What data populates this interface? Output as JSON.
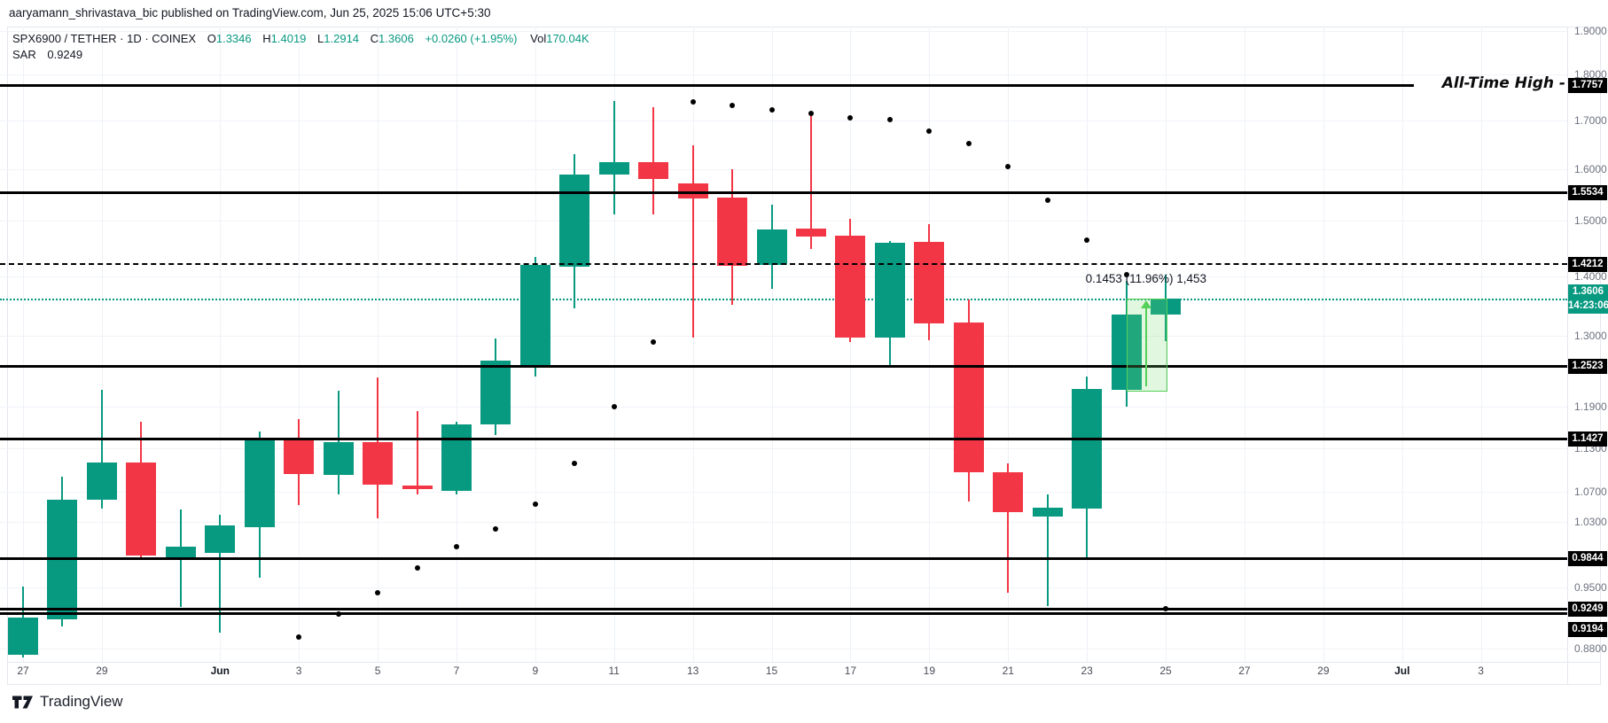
{
  "attribution": "aaryamann_shrivastava_bic published on TradingView.com, Jun 25, 2025 15:06 UTC+5:30",
  "legend": {
    "title": "SPX6900 / TETHER · 1D · COINEX",
    "o_label": "O",
    "o": "1.3346",
    "h_label": "H",
    "h": "1.4019",
    "l_label": "L",
    "l": "1.2914",
    "c_label": "C",
    "c": "1.3606",
    "change": "+0.0260 (+1.95%)",
    "vol_label": "Vol",
    "vol": "170.04K",
    "sar_label": "SAR",
    "sar_value": "0.9249"
  },
  "footer": {
    "logo_text": "TradingView"
  },
  "colors": {
    "up": "#089981",
    "down": "#f23645",
    "sar": "#000000",
    "level": "#000000",
    "current_price": "#089981",
    "range_fill": "rgba(118,217,110,0.22)",
    "range_border": "#55d058"
  },
  "chart_data": {
    "type": "candlestick",
    "title": "SPX6900 / TETHER · 1D · COINEX",
    "y_axis": {
      "top_price": 1.9,
      "bottom_price": 0.88,
      "scale": "log"
    },
    "y_ticks": [
      {
        "label": "1.9000",
        "value": 1.9
      },
      {
        "label": "1.8000",
        "value": 1.8
      },
      {
        "label": "1.7000",
        "value": 1.7
      },
      {
        "label": "1.6000",
        "value": 1.6
      },
      {
        "label": "1.5000",
        "value": 1.5
      },
      {
        "label": "1.4000",
        "value": 1.4
      },
      {
        "label": "1.3000",
        "value": 1.3
      },
      {
        "label": "1.1900",
        "value": 1.19
      },
      {
        "label": "1.1300",
        "value": 1.13
      },
      {
        "label": "1.0700",
        "value": 1.07
      },
      {
        "label": "1.0300",
        "value": 1.03
      },
      {
        "label": "0.9500",
        "value": 0.95
      },
      {
        "label": "0.8800",
        "value": 0.88
      }
    ],
    "x_ticks": [
      {
        "label": "27",
        "day": 0,
        "bold": false
      },
      {
        "label": "29",
        "day": 2,
        "bold": false
      },
      {
        "label": "Jun",
        "day": 5,
        "bold": true
      },
      {
        "label": "3",
        "day": 7,
        "bold": false
      },
      {
        "label": "5",
        "day": 9,
        "bold": false
      },
      {
        "label": "7",
        "day": 11,
        "bold": false
      },
      {
        "label": "9",
        "day": 13,
        "bold": false
      },
      {
        "label": "11",
        "day": 15,
        "bold": false
      },
      {
        "label": "13",
        "day": 17,
        "bold": false
      },
      {
        "label": "15",
        "day": 19,
        "bold": false
      },
      {
        "label": "17",
        "day": 21,
        "bold": false
      },
      {
        "label": "19",
        "day": 23,
        "bold": false
      },
      {
        "label": "21",
        "day": 25,
        "bold": false
      },
      {
        "label": "23",
        "day": 27,
        "bold": false
      },
      {
        "label": "25",
        "day": 29,
        "bold": false
      },
      {
        "label": "27",
        "day": 31,
        "bold": false
      },
      {
        "label": "29",
        "day": 33,
        "bold": false
      },
      {
        "label": "Jul",
        "day": 35,
        "bold": true
      },
      {
        "label": "3",
        "day": 37,
        "bold": false
      }
    ],
    "candles": [
      {
        "date": "May 27",
        "o": 0.873,
        "h": 0.951,
        "l": 0.87,
        "c": 0.915
      },
      {
        "date": "May 28",
        "o": 0.913,
        "h": 1.09,
        "l": 0.905,
        "c": 1.059
      },
      {
        "date": "May 29",
        "o": 1.059,
        "h": 1.215,
        "l": 1.048,
        "c": 1.11
      },
      {
        "date": "May 30",
        "o": 1.11,
        "h": 1.168,
        "l": 0.985,
        "c": 0.988
      },
      {
        "date": "May 31",
        "o": 0.984,
        "h": 1.047,
        "l": 0.927,
        "c": 0.999
      },
      {
        "date": "Jun 1",
        "o": 0.991,
        "h": 1.04,
        "l": 0.898,
        "c": 1.026
      },
      {
        "date": "Jun 2",
        "o": 1.024,
        "h": 1.154,
        "l": 0.961,
        "c": 1.144
      },
      {
        "date": "Jun 3",
        "o": 1.141,
        "h": 1.172,
        "l": 1.052,
        "c": 1.094
      },
      {
        "date": "Jun 4",
        "o": 1.093,
        "h": 1.213,
        "l": 1.067,
        "c": 1.138
      },
      {
        "date": "Jun 5",
        "o": 1.138,
        "h": 1.234,
        "l": 1.035,
        "c": 1.079
      },
      {
        "date": "Jun 6",
        "o": 1.078,
        "h": 1.183,
        "l": 1.066,
        "c": 1.074
      },
      {
        "date": "Jun 7",
        "o": 1.071,
        "h": 1.168,
        "l": 1.067,
        "c": 1.164
      },
      {
        "date": "Jun 8",
        "o": 1.163,
        "h": 1.295,
        "l": 1.148,
        "c": 1.26
      },
      {
        "date": "Jun 9",
        "o": 1.252,
        "h": 1.434,
        "l": 1.235,
        "c": 1.42
      },
      {
        "date": "Jun 10",
        "o": 1.417,
        "h": 1.629,
        "l": 1.344,
        "c": 1.588
      },
      {
        "date": "Jun 11",
        "o": 1.588,
        "h": 1.742,
        "l": 1.512,
        "c": 1.613
      },
      {
        "date": "Jun 12",
        "o": 1.613,
        "h": 1.727,
        "l": 1.512,
        "c": 1.58
      },
      {
        "date": "Jun 13",
        "o": 1.571,
        "h": 1.647,
        "l": 1.296,
        "c": 1.542
      },
      {
        "date": "Jun 14",
        "o": 1.543,
        "h": 1.599,
        "l": 1.351,
        "c": 1.418
      },
      {
        "date": "Jun 15",
        "o": 1.42,
        "h": 1.53,
        "l": 1.378,
        "c": 1.484
      },
      {
        "date": "Jun 16",
        "o": 1.485,
        "h": 1.708,
        "l": 1.448,
        "c": 1.471
      },
      {
        "date": "Jun 17",
        "o": 1.472,
        "h": 1.504,
        "l": 1.29,
        "c": 1.296
      },
      {
        "date": "Jun 18",
        "o": 1.296,
        "h": 1.463,
        "l": 1.251,
        "c": 1.46
      },
      {
        "date": "Jun 19",
        "o": 1.461,
        "h": 1.494,
        "l": 1.293,
        "c": 1.319
      },
      {
        "date": "Jun 20",
        "o": 1.321,
        "h": 1.36,
        "l": 1.057,
        "c": 1.096
      },
      {
        "date": "Jun 21",
        "o": 1.096,
        "h": 1.109,
        "l": 0.943,
        "c": 1.043
      },
      {
        "date": "Jun 22",
        "o": 1.037,
        "h": 1.066,
        "l": 0.928,
        "c": 1.049
      },
      {
        "date": "Jun 23",
        "o": 1.048,
        "h": 1.235,
        "l": 0.984,
        "c": 1.216
      },
      {
        "date": "Jun 24",
        "o": 1.215,
        "h": 1.392,
        "l": 1.19,
        "c": 1.335
      },
      {
        "date": "Jun 25",
        "o": 1.3346,
        "h": 1.4019,
        "l": 1.2914,
        "c": 1.3606
      }
    ],
    "sar": [
      {
        "day": 7,
        "value": 0.893
      },
      {
        "day": 8,
        "value": 0.919
      },
      {
        "day": 9,
        "value": 0.943
      },
      {
        "day": 10,
        "value": 0.973
      },
      {
        "day": 11,
        "value": 0.999
      },
      {
        "day": 12,
        "value": 1.022
      },
      {
        "day": 13,
        "value": 1.054
      },
      {
        "day": 14,
        "value": 1.108
      },
      {
        "day": 15,
        "value": 1.19
      },
      {
        "day": 16,
        "value": 1.29
      },
      {
        "day": 17,
        "value": 1.74
      },
      {
        "day": 18,
        "value": 1.731
      },
      {
        "day": 19,
        "value": 1.722
      },
      {
        "day": 20,
        "value": 1.714
      },
      {
        "day": 21,
        "value": 1.706
      },
      {
        "day": 22,
        "value": 1.701
      },
      {
        "day": 23,
        "value": 1.678
      },
      {
        "day": 24,
        "value": 1.652
      },
      {
        "day": 25,
        "value": 1.604
      },
      {
        "day": 26,
        "value": 1.539
      },
      {
        "day": 27,
        "value": 1.464
      },
      {
        "day": 28,
        "value": 1.402
      },
      {
        "day": 29,
        "value": 0.9249
      }
    ],
    "levels": [
      {
        "value": 1.7757,
        "style": "solid",
        "axis_label": "1.7757",
        "note": "All-Time High"
      },
      {
        "value": 1.5534,
        "style": "solid",
        "axis_label": "1.5534"
      },
      {
        "value": 1.4212,
        "style": "dashed",
        "axis_label": "1.4212"
      },
      {
        "value": 1.2523,
        "style": "solid",
        "axis_label": "1.2523"
      },
      {
        "value": 1.1427,
        "style": "solid",
        "axis_label": "1.1427"
      },
      {
        "value": 0.9844,
        "style": "solid",
        "axis_label": "0.9844"
      },
      {
        "value": 0.9249,
        "style": "solid",
        "axis_label": "0.9249"
      },
      {
        "value": 0.9194,
        "style": "solid",
        "axis_label": "0.9194",
        "label_offset": 18
      }
    ],
    "current_price": {
      "value": 1.3606,
      "label": "1.3606",
      "countdown": "14:23:06"
    },
    "range_tool": {
      "label": "0.1453 (11.96%) 1,453",
      "from_day": 28,
      "to_day": 29,
      "price_from": 1.2153,
      "price_to": 1.3606
    }
  }
}
